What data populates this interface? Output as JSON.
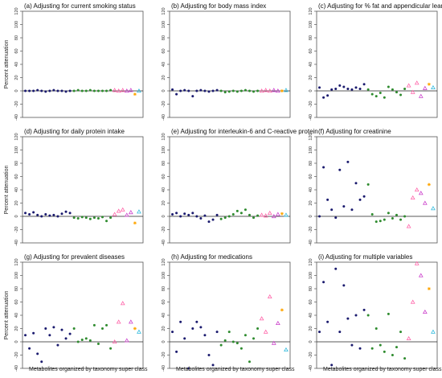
{
  "figure": {
    "xlabel": "Metabolites organized by taxonomy super class"
  },
  "palette": {
    "dark_blue": "#1a1a6e",
    "green": "#2e8b2e",
    "pink": "#ff66aa",
    "magenta": "#cc44cc",
    "orange": "#ffa500",
    "cyan": "#33bbdd"
  },
  "chart_data": [
    {
      "type": "scatter",
      "title": "(a) Adjusting for current smoking status",
      "ylabel": "Percent attenuation",
      "ylim": [
        -40,
        120
      ],
      "yticks": [
        -40,
        -20,
        0,
        20,
        40,
        60,
        80,
        100,
        120
      ],
      "grid": false,
      "series": [
        {
          "color": "dark_blue",
          "marker": "dot",
          "x": [
            1,
            2,
            3,
            4,
            5,
            6,
            7,
            8,
            9,
            10,
            11,
            12
          ],
          "y": [
            0,
            0,
            0,
            1,
            0,
            -1,
            0,
            1,
            0,
            0,
            -1,
            0
          ]
        },
        {
          "color": "green",
          "marker": "dot",
          "x": [
            13,
            14,
            15,
            16,
            17,
            18,
            19,
            20,
            21,
            22
          ],
          "y": [
            0,
            1,
            0,
            0,
            1,
            0,
            0,
            0,
            0,
            1
          ]
        },
        {
          "color": "pink",
          "marker": "triangle",
          "x": [
            23,
            24,
            25
          ],
          "y": [
            1,
            0,
            1
          ]
        },
        {
          "color": "magenta",
          "marker": "triangle",
          "x": [
            26,
            27
          ],
          "y": [
            0,
            1
          ]
        },
        {
          "color": "orange",
          "marker": "cross",
          "x": [
            28
          ],
          "y": [
            -5
          ]
        },
        {
          "color": "cyan",
          "marker": "triangle",
          "x": [
            29
          ],
          "y": [
            0
          ]
        }
      ]
    },
    {
      "type": "scatter",
      "title": "(b) Adjusting for body mass index",
      "ylabel": "",
      "ylim": [
        -40,
        120
      ],
      "yticks": [
        -40,
        -20,
        0,
        20,
        40,
        60,
        80,
        100,
        120
      ],
      "grid": false,
      "series": [
        {
          "color": "dark_blue",
          "marker": "dot",
          "x": [
            1,
            2,
            3,
            4,
            5,
            6,
            7,
            8,
            9,
            10,
            11,
            12
          ],
          "y": [
            2,
            -5,
            0,
            1,
            0,
            -8,
            0,
            1,
            0,
            -1,
            0,
            1
          ]
        },
        {
          "color": "green",
          "marker": "dot",
          "x": [
            13,
            14,
            15,
            16,
            17,
            18,
            19,
            20,
            21,
            22
          ],
          "y": [
            0,
            -2,
            -1,
            0,
            -1,
            0,
            1,
            0,
            -1,
            0
          ]
        },
        {
          "color": "pink",
          "marker": "triangle",
          "x": [
            23,
            24,
            25
          ],
          "y": [
            0,
            1,
            0
          ]
        },
        {
          "color": "magenta",
          "marker": "triangle",
          "x": [
            26,
            27
          ],
          "y": [
            1,
            0
          ]
        },
        {
          "color": "orange",
          "marker": "cross",
          "x": [
            28
          ],
          "y": [
            0
          ]
        },
        {
          "color": "cyan",
          "marker": "triangle",
          "x": [
            29
          ],
          "y": [
            1
          ]
        }
      ]
    },
    {
      "type": "scatter",
      "title": "(c) Adjusting for % fat and appendicular lean mass",
      "ylabel": "",
      "ylim": [
        -40,
        120
      ],
      "yticks": [
        -40,
        -20,
        0,
        20,
        40,
        60,
        80,
        100,
        120
      ],
      "grid": false,
      "series": [
        {
          "color": "dark_blue",
          "marker": "dot",
          "x": [
            1,
            2,
            3,
            4,
            5,
            6,
            7,
            8,
            9,
            10,
            11,
            12
          ],
          "y": [
            5,
            -10,
            -7,
            2,
            3,
            8,
            6,
            3,
            2,
            5,
            3,
            10
          ]
        },
        {
          "color": "green",
          "marker": "dot",
          "x": [
            13,
            14,
            15,
            16,
            17,
            18,
            19,
            20,
            21,
            22
          ],
          "y": [
            2,
            -5,
            -8,
            -3,
            -10,
            6,
            2,
            -2,
            -6,
            3
          ]
        },
        {
          "color": "pink",
          "marker": "triangle",
          "x": [
            23,
            24,
            25
          ],
          "y": [
            8,
            -2,
            12
          ]
        },
        {
          "color": "magenta",
          "marker": "triangle",
          "x": [
            26,
            27
          ],
          "y": [
            -8,
            4
          ]
        },
        {
          "color": "orange",
          "marker": "cross",
          "x": [
            28
          ],
          "y": [
            10
          ]
        },
        {
          "color": "cyan",
          "marker": "triangle",
          "x": [
            29
          ],
          "y": [
            5
          ]
        }
      ]
    },
    {
      "type": "scatter",
      "title": "(d) Adjusting for daily protein intake",
      "ylabel": "Percent attenuation",
      "ylim": [
        -40,
        120
      ],
      "yticks": [
        -40,
        -20,
        0,
        20,
        40,
        60,
        80,
        100,
        120
      ],
      "grid": false,
      "series": [
        {
          "color": "dark_blue",
          "marker": "dot",
          "x": [
            1,
            2,
            3,
            4,
            5,
            6,
            7,
            8,
            9,
            10,
            11,
            12
          ],
          "y": [
            5,
            3,
            6,
            2,
            0,
            3,
            1,
            2,
            0,
            4,
            7,
            5
          ]
        },
        {
          "color": "green",
          "marker": "dot",
          "x": [
            13,
            14,
            15,
            16,
            17,
            18,
            19,
            20,
            21,
            22
          ],
          "y": [
            -2,
            -3,
            -1,
            -2,
            -4,
            -2,
            -3,
            -1,
            -7,
            -2
          ]
        },
        {
          "color": "pink",
          "marker": "triangle",
          "x": [
            23,
            24,
            25
          ],
          "y": [
            3,
            8,
            10
          ]
        },
        {
          "color": "magenta",
          "marker": "triangle",
          "x": [
            26,
            27
          ],
          "y": [
            2,
            6
          ]
        },
        {
          "color": "orange",
          "marker": "cross",
          "x": [
            28
          ],
          "y": [
            -10
          ]
        },
        {
          "color": "cyan",
          "marker": "triangle",
          "x": [
            29
          ],
          "y": [
            7
          ]
        }
      ]
    },
    {
      "type": "scatter",
      "title": "(e) Adjusting for interleukin-6 and C-reactive protein",
      "ylabel": "",
      "ylim": [
        -40,
        120
      ],
      "yticks": [
        -40,
        -20,
        0,
        20,
        40,
        60,
        80,
        100,
        120
      ],
      "grid": false,
      "series": [
        {
          "color": "dark_blue",
          "marker": "dot",
          "x": [
            1,
            2,
            3,
            4,
            5,
            6,
            7,
            8,
            9,
            10,
            11,
            12
          ],
          "y": [
            3,
            5,
            0,
            4,
            2,
            5,
            0,
            -3,
            1,
            -8,
            -5,
            2
          ]
        },
        {
          "color": "green",
          "marker": "dot",
          "x": [
            13,
            14,
            15,
            16,
            17,
            18,
            19,
            20,
            21,
            22
          ],
          "y": [
            -4,
            -2,
            0,
            3,
            8,
            5,
            10,
            2,
            -2,
            1
          ]
        },
        {
          "color": "pink",
          "marker": "triangle",
          "x": [
            23,
            24,
            25
          ],
          "y": [
            2,
            1,
            5
          ]
        },
        {
          "color": "magenta",
          "marker": "triangle",
          "x": [
            26,
            27
          ],
          "y": [
            0,
            3
          ]
        },
        {
          "color": "orange",
          "marker": "cross",
          "x": [
            28
          ],
          "y": [
            4
          ]
        },
        {
          "color": "cyan",
          "marker": "triangle",
          "x": [
            29
          ],
          "y": [
            2
          ]
        }
      ]
    },
    {
      "type": "scatter",
      "title": "(f) Adjusting for creatinine",
      "ylabel": "",
      "ylim": [
        -40,
        120
      ],
      "yticks": [
        -40,
        -20,
        0,
        20,
        40,
        60,
        80,
        100,
        120
      ],
      "grid": false,
      "series": [
        {
          "color": "dark_blue",
          "marker": "dot",
          "x": [
            1,
            2,
            3,
            4,
            5,
            6,
            7,
            8,
            9,
            10,
            11,
            12
          ],
          "y": [
            0,
            74,
            25,
            10,
            -2,
            70,
            15,
            82,
            10,
            50,
            25,
            30
          ]
        },
        {
          "color": "green",
          "marker": "dot",
          "x": [
            13,
            14,
            15,
            16,
            17,
            18,
            19,
            20,
            21,
            22
          ],
          "y": [
            48,
            3,
            -8,
            -7,
            -5,
            5,
            -3,
            2,
            -5,
            0
          ]
        },
        {
          "color": "pink",
          "marker": "triangle",
          "x": [
            23,
            24,
            25
          ],
          "y": [
            -15,
            28,
            40
          ]
        },
        {
          "color": "magenta",
          "marker": "triangle",
          "x": [
            26,
            27
          ],
          "y": [
            35,
            20
          ]
        },
        {
          "color": "orange",
          "marker": "cross",
          "x": [
            28
          ],
          "y": [
            48
          ]
        },
        {
          "color": "cyan",
          "marker": "triangle",
          "x": [
            29
          ],
          "y": [
            12
          ]
        }
      ]
    },
    {
      "type": "scatter",
      "title": "(g) Adjusting for prevalent diseases",
      "ylabel": "Percent attenuation",
      "ylim": [
        -40,
        120
      ],
      "yticks": [
        -40,
        -20,
        0,
        20,
        40,
        60,
        80,
        100,
        120
      ],
      "grid": false,
      "series": [
        {
          "color": "dark_blue",
          "marker": "dot",
          "x": [
            1,
            2,
            3,
            4,
            5,
            6,
            7,
            8,
            9,
            10,
            11,
            12
          ],
          "y": [
            10,
            -10,
            13,
            -18,
            -30,
            20,
            10,
            22,
            -5,
            18,
            5,
            12
          ]
        },
        {
          "color": "green",
          "marker": "dot",
          "x": [
            13,
            14,
            15,
            16,
            17,
            18,
            19,
            20,
            21,
            22
          ],
          "y": [
            20,
            0,
            3,
            5,
            2,
            25,
            -3,
            20,
            25,
            -10
          ]
        },
        {
          "color": "pink",
          "marker": "triangle",
          "x": [
            23,
            24,
            25
          ],
          "y": [
            0,
            30,
            58
          ]
        },
        {
          "color": "magenta",
          "marker": "triangle",
          "x": [
            26,
            27
          ],
          "y": [
            2,
            30
          ]
        },
        {
          "color": "orange",
          "marker": "cross",
          "x": [
            28
          ],
          "y": [
            20
          ]
        },
        {
          "color": "cyan",
          "marker": "triangle",
          "x": [
            29
          ],
          "y": [
            15
          ]
        }
      ]
    },
    {
      "type": "scatter",
      "title": "(h) Adjusting for medications",
      "ylabel": "",
      "ylim": [
        -40,
        120
      ],
      "yticks": [
        -40,
        -20,
        0,
        20,
        40,
        60,
        80,
        100,
        120
      ],
      "grid": false,
      "series": [
        {
          "color": "dark_blue",
          "marker": "dot",
          "x": [
            1,
            2,
            3,
            4,
            5,
            6,
            7,
            8,
            9,
            10,
            11,
            12
          ],
          "y": [
            15,
            -15,
            30,
            5,
            -40,
            20,
            30,
            22,
            10,
            -20,
            -35,
            15
          ]
        },
        {
          "color": "green",
          "marker": "dot",
          "x": [
            13,
            14,
            15,
            16,
            17,
            18,
            19,
            20,
            21,
            22
          ],
          "y": [
            -5,
            2,
            15,
            0,
            -2,
            -10,
            10,
            -30,
            5,
            20
          ]
        },
        {
          "color": "pink",
          "marker": "triangle",
          "x": [
            23,
            24,
            25
          ],
          "y": [
            35,
            15,
            68
          ]
        },
        {
          "color": "magenta",
          "marker": "triangle",
          "x": [
            26,
            27
          ],
          "y": [
            -2,
            28
          ]
        },
        {
          "color": "orange",
          "marker": "cross",
          "x": [
            28
          ],
          "y": [
            48
          ]
        },
        {
          "color": "cyan",
          "marker": "triangle",
          "x": [
            29
          ],
          "y": [
            -12
          ]
        }
      ]
    },
    {
      "type": "scatter",
      "title": "(i) Adjusting for multiple variables",
      "ylabel": "",
      "ylim": [
        -40,
        120
      ],
      "yticks": [
        -40,
        -20,
        0,
        20,
        40,
        60,
        80,
        100,
        120
      ],
      "grid": false,
      "series": [
        {
          "color": "dark_blue",
          "marker": "dot",
          "x": [
            1,
            2,
            3,
            4,
            5,
            6,
            7,
            8,
            9,
            10,
            11,
            12
          ],
          "y": [
            15,
            90,
            30,
            -35,
            110,
            15,
            85,
            35,
            -5,
            40,
            -10,
            48
          ]
        },
        {
          "color": "green",
          "marker": "dot",
          "x": [
            13,
            14,
            15,
            16,
            17,
            18,
            19,
            20,
            21,
            22
          ],
          "y": [
            40,
            -10,
            20,
            -5,
            -15,
            42,
            -20,
            -8,
            15,
            -25
          ]
        },
        {
          "color": "pink",
          "marker": "triangle",
          "x": [
            23,
            24,
            25
          ],
          "y": [
            5,
            60,
            118
          ]
        },
        {
          "color": "magenta",
          "marker": "triangle",
          "x": [
            26,
            27
          ],
          "y": [
            100,
            45
          ]
        },
        {
          "color": "orange",
          "marker": "cross",
          "x": [
            28
          ],
          "y": [
            80
          ]
        },
        {
          "color": "cyan",
          "marker": "triangle",
          "x": [
            29
          ],
          "y": [
            15
          ]
        }
      ]
    }
  ]
}
